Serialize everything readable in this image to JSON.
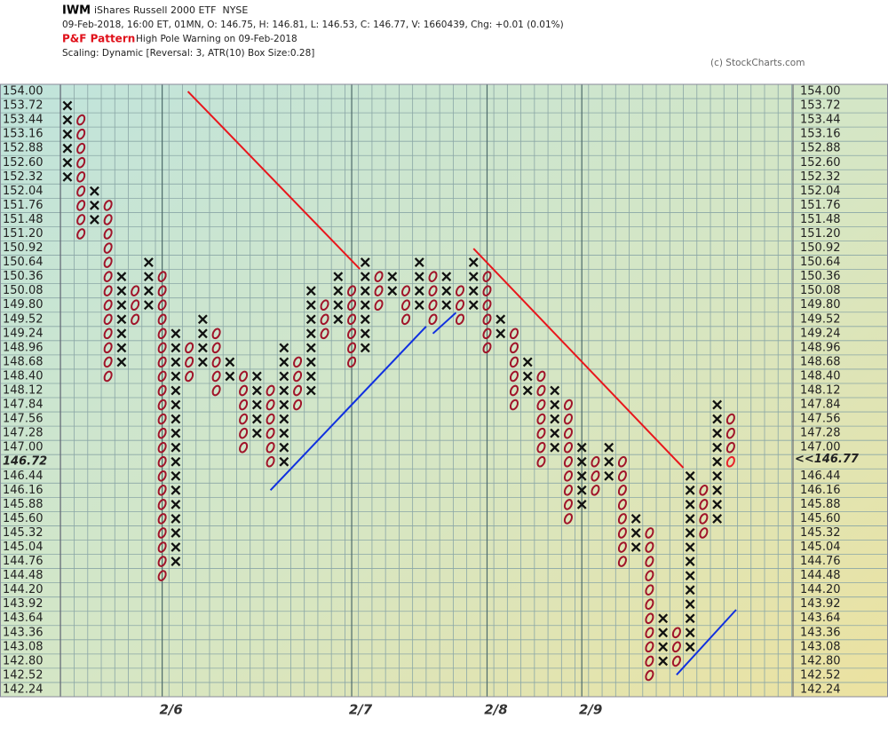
{
  "chart_data": {
    "type": "point-and-figure",
    "symbol": "IWM",
    "name": "iShares Russell 2000 ETF  NYSE",
    "quote": "09-Feb-2018, 16:00 ET, 01MN, O: 146.75, H: 146.81, L: 146.53, C: 146.77, V: 1660439, Chg: +0.01 (0.01%)",
    "pattern_label": "P&F Pattern",
    "pattern": "High Pole Warning on 09-Feb-2018",
    "scaling": "Scaling: Dynamic [Reversal: 3, ATR(10) Box Size:0.28]",
    "credit": "(c) StockCharts.com",
    "box_size": 0.28,
    "x_color": "#111111",
    "o_color": "#a0142a",
    "last_box_color": "#e8222a",
    "last_price": {
      "value": 146.77,
      "label": "<<146.77"
    },
    "ylim": [
      142.1,
      154.14
    ],
    "xlim": [
      -0.52,
      53.6
    ],
    "yticks": [
      {
        "value": 154.0,
        "label": "154.00"
      },
      153.72,
      153.44,
      153.16,
      152.88,
      {
        "value": 152.6,
        "label": "152.60"
      },
      152.32,
      152.04,
      151.76,
      151.48,
      {
        "value": 151.2,
        "label": "151.20"
      },
      150.92,
      150.64,
      150.36,
      150.08,
      {
        "value": 149.8,
        "label": "149.80"
      },
      149.52,
      149.24,
      148.96,
      148.68,
      {
        "value": 148.4,
        "label": "148.40"
      },
      148.12,
      147.84,
      147.56,
      147.28,
      {
        "value": 147.0,
        "label": "147.00"
      },
      146.72,
      146.44,
      146.16,
      145.88,
      {
        "value": 145.6,
        "label": "145.60"
      },
      145.32,
      145.04,
      144.76,
      144.48,
      {
        "value": 144.2,
        "label": "144.20"
      },
      143.92,
      143.64,
      143.36,
      143.08,
      {
        "value": 142.8,
        "label": "142.80"
      },
      142.52,
      142.24
    ],
    "date_markers": [
      {
        "label": "2/6",
        "column": 7
      },
      {
        "label": "2/7",
        "column": 21
      },
      {
        "label": "2/8",
        "column": 31
      },
      {
        "label": "2/9",
        "column": 38
      }
    ],
    "columns": [
      {
        "box": "X",
        "low": 152.32,
        "high": 153.72
      },
      {
        "box": "O",
        "low": 151.2,
        "high": 153.44
      },
      {
        "box": "X",
        "low": 151.48,
        "high": 152.04
      },
      {
        "box": "O",
        "low": 148.4,
        "high": 151.76
      },
      {
        "box": "X",
        "low": 148.68,
        "high": 150.36
      },
      {
        "box": "O",
        "low": 149.52,
        "high": 150.08
      },
      {
        "box": "X",
        "low": 149.8,
        "high": 150.64
      },
      {
        "box": "O",
        "low": 144.48,
        "high": 150.36
      },
      {
        "box": "X",
        "low": 144.76,
        "high": 149.24
      },
      {
        "box": "O",
        "low": 148.4,
        "high": 148.96
      },
      {
        "box": "X",
        "low": 148.68,
        "high": 149.52
      },
      {
        "box": "O",
        "low": 148.12,
        "high": 149.24
      },
      {
        "box": "X",
        "low": 148.4,
        "high": 148.68
      },
      {
        "box": "O",
        "low": 147.0,
        "high": 148.4
      },
      {
        "box": "X",
        "low": 147.28,
        "high": 148.4
      },
      {
        "box": "O",
        "low": 146.72,
        "high": 148.12
      },
      {
        "box": "X",
        "low": 146.72,
        "high": 148.96
      },
      {
        "box": "O",
        "low": 147.84,
        "high": 148.68
      },
      {
        "box": "X",
        "low": 148.12,
        "high": 150.08
      },
      {
        "box": "O",
        "low": 149.24,
        "high": 149.8
      },
      {
        "box": "X",
        "low": 149.52,
        "high": 150.36
      },
      {
        "box": "O",
        "low": 148.68,
        "high": 150.08
      },
      {
        "box": "X",
        "low": 148.96,
        "high": 150.64
      },
      {
        "box": "O",
        "low": 149.8,
        "high": 150.36
      },
      {
        "box": "X",
        "low": 150.08,
        "high": 150.36
      },
      {
        "box": "O",
        "low": 149.52,
        "high": 150.08
      },
      {
        "box": "X",
        "low": 149.8,
        "high": 150.64
      },
      {
        "box": "O",
        "low": 149.52,
        "high": 150.36
      },
      {
        "box": "X",
        "low": 149.8,
        "high": 150.36
      },
      {
        "box": "O",
        "low": 149.52,
        "high": 150.08
      },
      {
        "box": "X",
        "low": 149.8,
        "high": 150.64
      },
      {
        "box": "O",
        "low": 148.96,
        "high": 150.36
      },
      {
        "box": "X",
        "low": 149.24,
        "high": 149.52
      },
      {
        "box": "O",
        "low": 147.84,
        "high": 149.24
      },
      {
        "box": "X",
        "low": 148.12,
        "high": 148.68
      },
      {
        "box": "O",
        "low": 146.72,
        "high": 148.4
      },
      {
        "box": "X",
        "low": 147.0,
        "high": 148.12
      },
      {
        "box": "O",
        "low": 145.6,
        "high": 147.84
      },
      {
        "box": "X",
        "low": 145.88,
        "high": 147.0
      },
      {
        "box": "O",
        "low": 146.16,
        "high": 146.72
      },
      {
        "box": "X",
        "low": 146.44,
        "high": 147.0
      },
      {
        "box": "O",
        "low": 144.76,
        "high": 146.72
      },
      {
        "box": "X",
        "low": 145.04,
        "high": 145.6
      },
      {
        "box": "O",
        "low": 142.52,
        "high": 145.32
      },
      {
        "box": "X",
        "low": 142.8,
        "high": 143.64
      },
      {
        "box": "O",
        "low": 142.8,
        "high": 143.36
      },
      {
        "box": "X",
        "low": 143.08,
        "high": 146.44
      },
      {
        "box": "O",
        "low": 145.32,
        "high": 146.16
      },
      {
        "box": "X",
        "low": 145.6,
        "high": 147.84
      },
      {
        "box": "O",
        "low": 146.72,
        "high": 147.56
      }
    ],
    "trendlines": [
      {
        "color": "#e8161c",
        "points": [
          [
            8.9,
            154.0
          ],
          [
            21.6,
            150.51
          ]
        ]
      },
      {
        "color": "#e8161c",
        "points": [
          [
            30.0,
            150.91
          ],
          [
            45.5,
            146.6
          ]
        ]
      },
      {
        "color": "#1030e0",
        "points": [
          [
            15.0,
            146.16
          ],
          [
            26.5,
            149.38
          ]
        ]
      },
      {
        "color": "#1030e0",
        "points": [
          [
            27.0,
            149.24
          ],
          [
            28.7,
            149.65
          ]
        ]
      },
      {
        "color": "#1030e0",
        "points": [
          [
            45.0,
            142.53
          ],
          [
            49.4,
            143.81
          ]
        ]
      }
    ]
  }
}
